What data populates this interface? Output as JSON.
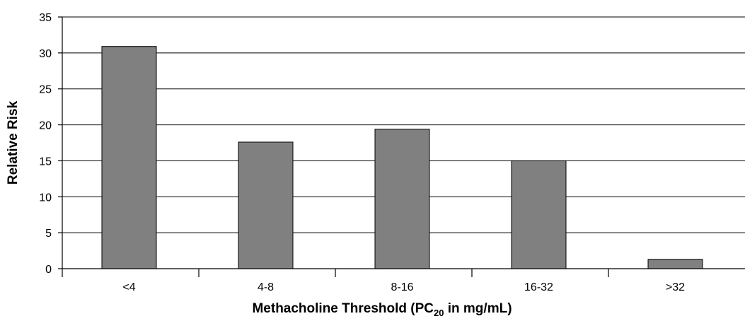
{
  "chart_data": {
    "type": "bar",
    "categories": [
      "<4",
      "4-8",
      "8-16",
      "16-32",
      ">32"
    ],
    "values": [
      30.9,
      17.6,
      19.4,
      15.0,
      1.3
    ],
    "xlabel": {
      "prefix": "Methacholine Threshold (PC",
      "subscript": "20",
      "suffix": " in mg/mL)"
    },
    "ylabel": "Relative Risk",
    "ylim": [
      0,
      35
    ],
    "yticks": [
      0,
      5,
      10,
      15,
      20,
      25,
      30,
      35
    ],
    "grid": true,
    "legend": "none",
    "colors": {
      "bar": "#808080",
      "bar_outline": "#000000"
    }
  }
}
